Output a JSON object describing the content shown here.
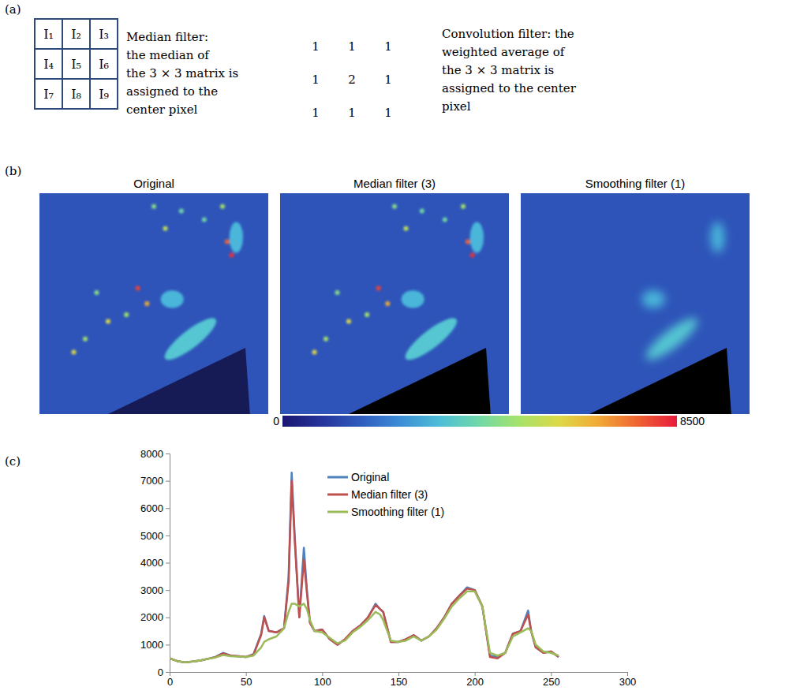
{
  "panel_letters": [
    "(a)",
    "(b)",
    "(c)"
  ],
  "panel_a": {
    "matrix": [
      [
        "I₁",
        "I₂",
        "I₃"
      ],
      [
        "I₄",
        "I₅",
        "I₆"
      ],
      [
        "I₇",
        "I₈",
        "I₉"
      ]
    ],
    "median_text": [
      "Median filter:",
      "the median of",
      "the 3 × 3 matrix is",
      "assigned to the",
      "center pixel"
    ],
    "kernel": [
      [
        1,
        1,
        1
      ],
      [
        1,
        2,
        1
      ],
      [
        1,
        1,
        1
      ]
    ],
    "convolution_text": [
      "Convolution filter: the",
      "weighted average of",
      "the 3 × 3 matrix is",
      "assigned to the center",
      "pixel"
    ]
  },
  "panel_b": {
    "titles": [
      "Original",
      "Median filter (3)",
      "Smoothing filter (1)"
    ],
    "colorbar": {
      "range": [
        0,
        8500
      ],
      "ticks": [
        0,
        8500
      ]
    }
  },
  "chart_data": {
    "type": "line",
    "x": [
      0,
      5,
      10,
      15,
      20,
      25,
      30,
      35,
      40,
      45,
      50,
      55,
      60,
      62,
      65,
      70,
      75,
      78,
      80,
      82,
      85,
      88,
      90,
      92,
      95,
      100,
      105,
      110,
      115,
      120,
      125,
      130,
      135,
      138,
      140,
      145,
      150,
      155,
      160,
      165,
      170,
      175,
      180,
      185,
      190,
      195,
      200,
      205,
      210,
      215,
      220,
      225,
      230,
      235,
      237,
      240,
      245,
      250,
      255
    ],
    "series": [
      {
        "name": "Original",
        "color": "#4f81bd",
        "values": [
          500,
          400,
          350,
          380,
          420,
          480,
          550,
          700,
          600,
          580,
          550,
          650,
          1400,
          2050,
          1500,
          1450,
          1600,
          3500,
          7300,
          5000,
          2000,
          4550,
          3000,
          1800,
          1500,
          1550,
          1200,
          1000,
          1200,
          1500,
          1700,
          2000,
          2500,
          2300,
          2200,
          1100,
          1100,
          1200,
          1350,
          1150,
          1300,
          1600,
          2000,
          2500,
          2800,
          3100,
          3000,
          2400,
          600,
          550,
          700,
          1400,
          1500,
          2250,
          1500,
          900,
          700,
          750,
          550
        ]
      },
      {
        "name": "Median filter (3)",
        "color": "#c0504d",
        "values": [
          500,
          400,
          350,
          380,
          420,
          480,
          540,
          680,
          600,
          580,
          550,
          640,
          1350,
          2000,
          1500,
          1450,
          1600,
          3300,
          7000,
          4800,
          2000,
          4100,
          2900,
          1800,
          1500,
          1550,
          1200,
          1000,
          1200,
          1500,
          1700,
          2000,
          2450,
          2300,
          2200,
          1100,
          1100,
          1200,
          1350,
          1150,
          1300,
          1600,
          2000,
          2500,
          2800,
          3050,
          3000,
          2400,
          550,
          500,
          700,
          1400,
          1500,
          2100,
          1500,
          900,
          700,
          750,
          550
        ]
      },
      {
        "name": "Smoothing filter (1)",
        "color": "#9bbb59",
        "values": [
          500,
          400,
          350,
          380,
          420,
          480,
          530,
          620,
          580,
          560,
          550,
          600,
          900,
          1100,
          1200,
          1300,
          1600,
          2200,
          2500,
          2500,
          2400,
          2500,
          2300,
          1900,
          1500,
          1450,
          1250,
          1050,
          1150,
          1450,
          1650,
          1900,
          2200,
          2100,
          1900,
          1150,
          1100,
          1150,
          1300,
          1150,
          1300,
          1550,
          1950,
          2400,
          2700,
          2950,
          2950,
          2400,
          700,
          600,
          700,
          1300,
          1450,
          1600,
          1500,
          1000,
          750,
          700,
          600
        ]
      }
    ],
    "xlim": [
      0,
      300
    ],
    "xticks": [
      0,
      50,
      100,
      150,
      200,
      250,
      300
    ],
    "ylim": [
      0,
      8000
    ],
    "yticks": [
      0,
      1000,
      2000,
      3000,
      4000,
      5000,
      6000,
      7000,
      8000
    ],
    "legend": "top",
    "grid": false
  }
}
